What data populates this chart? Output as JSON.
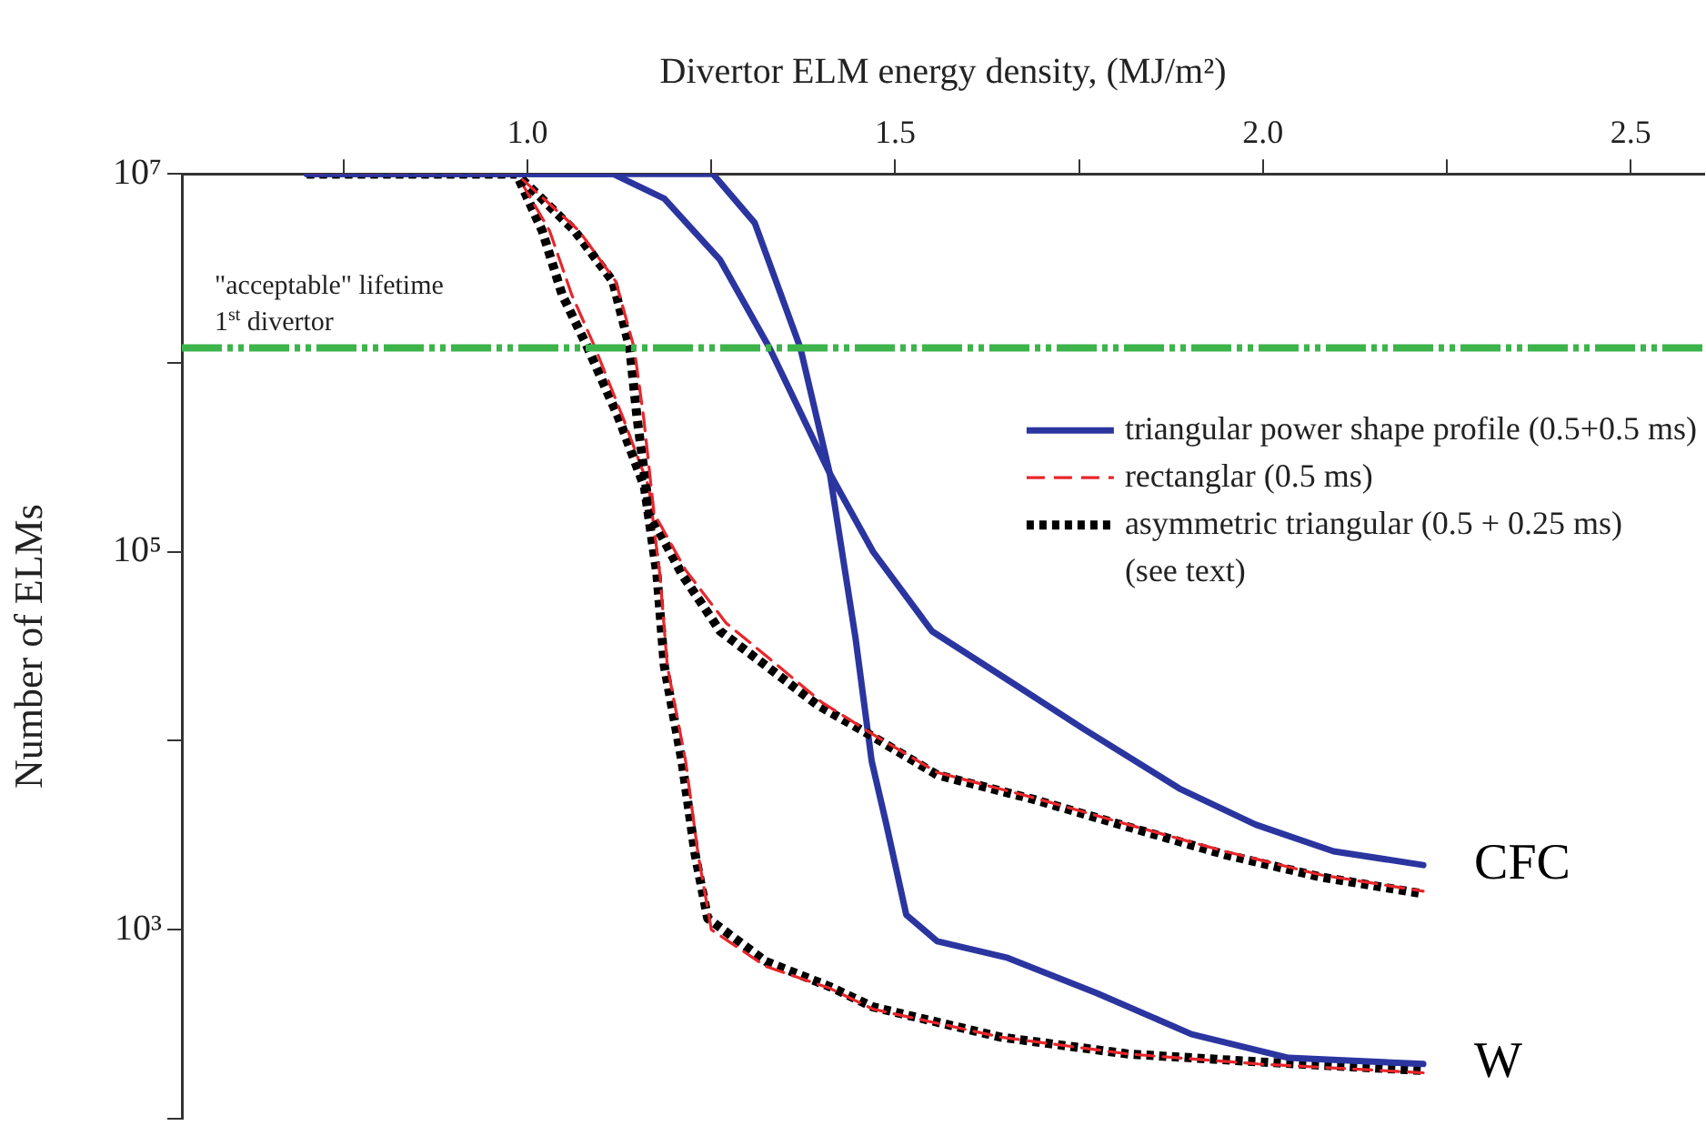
{
  "chart_data": {
    "type": "line",
    "xlabel": "Divertor ELM energy density, (MJ/m²)",
    "ylabel": "Number of ELMs",
    "xlim": [
      0.53,
      2.6
    ],
    "xticks": [
      {
        "value": 0.75,
        "label": null
      },
      {
        "value": 1,
        "label": "1.0"
      },
      {
        "value": 1.25,
        "label": null
      },
      1.5,
      {
        "value": 1.75,
        "label": null
      },
      {
        "value": 2,
        "label": "2.0"
      },
      {
        "value": 2.25,
        "label": null
      },
      2.5
    ],
    "ylim": [
      100,
      10000000
    ],
    "log": "y",
    "yticks": [
      {
        "value": 100,
        "label": null
      },
      {
        "value": 1000,
        "label": "10³"
      },
      {
        "value": 10000,
        "label": null
      },
      {
        "value": 100000,
        "label": "10⁵"
      },
      {
        "value": 1000000,
        "label": null
      },
      {
        "value": 10000000,
        "label": "10⁷"
      }
    ],
    "grid": false,
    "legend": "top right",
    "marker": "none",
    "series": [
      {
        "name": "triangular power shape profile (0.5+0.5 ms)",
        "color": "#2b35a0",
        "line_style": "solid",
        "x": [
          0.7,
          1.116,
          1.186,
          1.262,
          1.329,
          1.411,
          1.47,
          1.55,
          1.653,
          1.757,
          1.886,
          1.99,
          2.096,
          2.218
        ],
        "values": [
          10000000,
          10000000,
          7400000,
          3500000,
          1200000,
          260000,
          100000,
          38000,
          21000,
          11500,
          5600,
          3600,
          2600,
          2200
        ]
      },
      {
        "name": "rectanglar (0.5 ms)",
        "color": "#e8262b",
        "line_style": "dashed",
        "x": [
          0.7,
          0.985,
          1.07,
          1.12,
          1.145,
          1.158,
          1.172,
          1.215,
          1.27,
          1.33,
          1.4,
          1.47,
          1.557,
          1.688,
          1.817,
          1.948,
          2.079,
          2.218
        ],
        "values": [
          10000000,
          10000000,
          5000000,
          2700000,
          1200000,
          510000,
          160000,
          80000,
          42000,
          27000,
          16000,
          10800,
          6800,
          5000,
          3600,
          2600,
          1950,
          1600
        ]
      },
      {
        "name": "asymmetric triangular (0.5 + 0.25 ms)\n(see text)",
        "color": "#000000",
        "line_style": "dotted",
        "x": [
          0.7,
          0.985,
          1.064,
          1.116,
          1.139,
          1.149,
          1.166,
          1.21,
          1.262,
          1.324,
          1.394,
          1.47,
          1.557,
          1.688,
          1.817,
          1.948,
          2.079,
          2.218
        ],
        "values": [
          10000000,
          10000000,
          5000000,
          2700000,
          1200000,
          510000,
          160000,
          76000,
          38000,
          25000,
          15500,
          10500,
          6600,
          4900,
          3500,
          2500,
          1900,
          1550
        ]
      },
      {
        "color": "#2b35a0",
        "line_style": "solid",
        "x": [
          0.7,
          1.252,
          1.309,
          1.371,
          1.411,
          1.446,
          1.468,
          1.488,
          1.515,
          1.557,
          1.653,
          1.775,
          1.903,
          2.035,
          2.218
        ],
        "values": [
          10000000,
          10000000,
          5500000,
          1200000,
          260000,
          35000,
          7800,
          3600,
          1200,
          870,
          710,
          460,
          280,
          210,
          195
        ]
      },
      {
        "color": "#e8262b",
        "line_style": "dashed",
        "x": [
          0.7,
          0.985,
          1.03,
          1.06,
          1.092,
          1.13,
          1.165,
          1.18,
          1.19,
          1.215,
          1.232,
          1.25,
          1.324,
          1.411,
          1.47,
          1.644,
          1.817,
          1.993,
          2.218
        ],
        "values": [
          10000000,
          10000000,
          5000000,
          2300000,
          1200000,
          510000,
          220000,
          76000,
          25000,
          7800,
          2500,
          1000,
          640,
          490,
          380,
          270,
          220,
          195,
          175
        ]
      },
      {
        "color": "#000000",
        "line_style": "dotted",
        "x": [
          0.7,
          0.985,
          1.02,
          1.047,
          1.082,
          1.124,
          1.159,
          1.176,
          1.186,
          1.21,
          1.228,
          1.245,
          1.324,
          1.411,
          1.47,
          1.644,
          1.817,
          1.993,
          2.218
        ],
        "values": [
          10000000,
          10000000,
          5000000,
          2300000,
          1200000,
          510000,
          220000,
          76000,
          25000,
          7800,
          2500,
          1150,
          680,
          500,
          390,
          270,
          220,
          200,
          180
        ]
      }
    ],
    "ref_lines": [
      {
        "axis": "y",
        "value": 1200000,
        "label": "\"acceptable\" lifetime\n1$^{st}$ divertor",
        "color": "#3cb44b",
        "line_style": "dashed"
      }
    ],
    "annotations": [
      {
        "text": "CFC",
        "x": 2.218,
        "y": 2200
      },
      {
        "text": "W",
        "x": 2.218,
        "y": 195
      }
    ]
  }
}
